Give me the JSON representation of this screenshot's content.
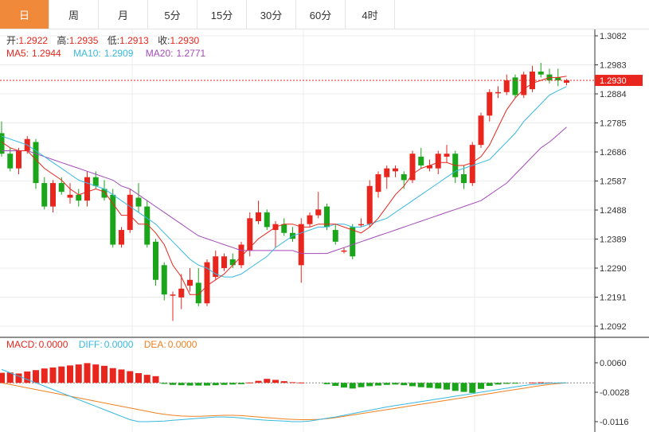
{
  "tabs": [
    "日",
    "周",
    "月",
    "5分",
    "15分",
    "30分",
    "60分",
    "4时"
  ],
  "colors": {
    "up": "#e8261d",
    "down": "#1aa51a",
    "ma5": "#e8261d",
    "ma10": "#37b8e0",
    "ma20": "#a44bb8",
    "diff": "#37b8e0",
    "dea": "#f08020",
    "active_tab": "#f08a3a"
  },
  "ohlc_header": {
    "open_label": "开:",
    "open": "1.2922",
    "high_label": "高:",
    "high": "1.2935",
    "low_label": "低:",
    "low": "1.2913",
    "close_label": "收:",
    "close": "1.2930"
  },
  "ma_header": {
    "ma5_label": "MA5:",
    "ma5": "1.2944",
    "ma10_label": "MA10:",
    "ma10": "1.2909",
    "ma20_label": "MA20:",
    "ma20": "1.2771"
  },
  "macd_header": {
    "macd_label": "MACD:",
    "macd": "0.0000",
    "diff_label": "DIFF:",
    "diff": "0.0000",
    "dea_label": "DEA:",
    "dea": "0.0000"
  },
  "chart_data": {
    "type": "candlestick",
    "price_axis": {
      "ticks": [
        "1.3082",
        "1.2983",
        "1.2884",
        "1.2785",
        "1.2686",
        "1.2587",
        "1.2488",
        "1.2389",
        "1.2290",
        "1.2191",
        "1.2092"
      ],
      "min": 1.2092,
      "max": 1.3082
    },
    "last_price": "1.2930",
    "macd_axis": {
      "ticks": [
        "0.0060",
        "-0.0028",
        "-0.0116"
      ],
      "min": -0.0116,
      "max": 0.006
    },
    "candles": [
      [
        1.275,
        1.279,
        1.267,
        1.268
      ],
      [
        1.268,
        1.27,
        1.262,
        1.263
      ],
      [
        1.263,
        1.27,
        1.261,
        1.269
      ],
      [
        1.269,
        1.274,
        1.268,
        1.273
      ],
      [
        1.272,
        1.273,
        1.256,
        1.258
      ],
      [
        1.258,
        1.26,
        1.249,
        1.25
      ],
      [
        1.25,
        1.259,
        1.248,
        1.258
      ],
      [
        1.258,
        1.26,
        1.254,
        1.255
      ],
      [
        1.253,
        1.258,
        1.251,
        1.254
      ],
      [
        1.254,
        1.256,
        1.25,
        1.252
      ],
      [
        1.252,
        1.262,
        1.25,
        1.26
      ],
      [
        1.26,
        1.262,
        1.256,
        1.257
      ],
      [
        1.256,
        1.259,
        1.252,
        1.253
      ],
      [
        1.254,
        1.256,
        1.236,
        1.237
      ],
      [
        1.237,
        1.243,
        1.236,
        1.242
      ],
      [
        1.242,
        1.256,
        1.241,
        1.254
      ],
      [
        1.253,
        1.258,
        1.248,
        1.25
      ],
      [
        1.25,
        1.252,
        1.236,
        1.237
      ],
      [
        1.238,
        1.239,
        1.223,
        1.225
      ],
      [
        1.23,
        1.231,
        1.218,
        1.22
      ],
      [
        1.22,
        1.221,
        1.211,
        1.22
      ],
      [
        1.219,
        1.227,
        1.215,
        1.222
      ],
      [
        1.223,
        1.229,
        1.221,
        1.225
      ],
      [
        1.224,
        1.229,
        1.216,
        1.217
      ],
      [
        1.217,
        1.232,
        1.216,
        1.231
      ],
      [
        1.226,
        1.235,
        1.225,
        1.233
      ],
      [
        1.229,
        1.234,
        1.228,
        1.233
      ],
      [
        1.232,
        1.234,
        1.229,
        1.23
      ],
      [
        1.23,
        1.238,
        1.229,
        1.237
      ],
      [
        1.235,
        1.248,
        1.233,
        1.246
      ],
      [
        1.245,
        1.252,
        1.244,
        1.248
      ],
      [
        1.248,
        1.249,
        1.242,
        1.243
      ],
      [
        1.242,
        1.245,
        1.236,
        1.244
      ],
      [
        1.244,
        1.246,
        1.24,
        1.241
      ],
      [
        1.241,
        1.243,
        1.238,
        1.239
      ],
      [
        1.23,
        1.246,
        1.224,
        1.244
      ],
      [
        1.244,
        1.248,
        1.243,
        1.247
      ],
      [
        1.247,
        1.255,
        1.246,
        1.249
      ],
      [
        1.25,
        1.251,
        1.242,
        1.243
      ],
      [
        1.242,
        1.244,
        1.237,
        1.238
      ],
      [
        1.235,
        1.236,
        1.234,
        1.235
      ],
      [
        1.243,
        1.244,
        1.232,
        1.233
      ],
      [
        1.244,
        1.246,
        1.243,
        1.244
      ],
      [
        1.244,
        1.259,
        1.243,
        1.257
      ],
      [
        1.255,
        1.262,
        1.253,
        1.261
      ],
      [
        1.26,
        1.264,
        1.256,
        1.263
      ],
      [
        1.262,
        1.264,
        1.26,
        1.263
      ],
      [
        1.261,
        1.262,
        1.256,
        1.259
      ],
      [
        1.259,
        1.269,
        1.258,
        1.268
      ],
      [
        1.267,
        1.27,
        1.263,
        1.264
      ],
      [
        1.263,
        1.266,
        1.262,
        1.264
      ],
      [
        1.263,
        1.269,
        1.261,
        1.268
      ],
      [
        1.267,
        1.271,
        1.265,
        1.268
      ],
      [
        1.268,
        1.269,
        1.258,
        1.26
      ],
      [
        1.261,
        1.264,
        1.256,
        1.258
      ],
      [
        1.258,
        1.272,
        1.257,
        1.271
      ],
      [
        1.271,
        1.282,
        1.27,
        1.281
      ],
      [
        1.281,
        1.29,
        1.279,
        1.289
      ],
      [
        1.289,
        1.291,
        1.287,
        1.289
      ],
      [
        1.289,
        1.295,
        1.288,
        1.293
      ],
      [
        1.294,
        1.295,
        1.287,
        1.288
      ],
      [
        1.288,
        1.296,
        1.287,
        1.295
      ],
      [
        1.29,
        1.298,
        1.289,
        1.296
      ],
      [
        1.296,
        1.299,
        1.294,
        1.295
      ],
      [
        1.295,
        1.297,
        1.292,
        1.293
      ],
      [
        1.294,
        1.297,
        1.291,
        1.293
      ],
      [
        1.2922,
        1.2935,
        1.2913,
        1.293
      ]
    ],
    "ma5": [
      1.272,
      1.27,
      1.269,
      1.269,
      1.266,
      1.263,
      1.261,
      1.259,
      1.256,
      1.254,
      1.255,
      1.256,
      1.255,
      1.251,
      1.247,
      1.247,
      1.244,
      1.244,
      1.241,
      1.237,
      1.23,
      1.226,
      1.22,
      1.22,
      1.223,
      1.225,
      1.227,
      1.23,
      1.233,
      1.236,
      1.239,
      1.241,
      1.243,
      1.244,
      1.244,
      1.243,
      1.243,
      1.244,
      1.244,
      1.244,
      1.243,
      1.242,
      1.241,
      1.243,
      1.246,
      1.25,
      1.254,
      1.257,
      1.261,
      1.263,
      1.264,
      1.265,
      1.265,
      1.264,
      1.264,
      1.265,
      1.267,
      1.271,
      1.277,
      1.283,
      1.287,
      1.29,
      1.292,
      1.293,
      1.294,
      1.294,
      1.2944
    ],
    "ma10": [
      1.274,
      1.273,
      1.272,
      1.271,
      1.269,
      1.267,
      1.265,
      1.263,
      1.261,
      1.259,
      1.258,
      1.257,
      1.256,
      1.254,
      1.252,
      1.25,
      1.248,
      1.246,
      1.244,
      1.241,
      1.238,
      1.235,
      1.232,
      1.23,
      1.229,
      1.227,
      1.226,
      1.226,
      1.227,
      1.229,
      1.231,
      1.233,
      1.236,
      1.238,
      1.24,
      1.241,
      1.242,
      1.243,
      1.243,
      1.244,
      1.244,
      1.243,
      1.243,
      1.244,
      1.245,
      1.246,
      1.248,
      1.25,
      1.252,
      1.254,
      1.256,
      1.258,
      1.26,
      1.262,
      1.263,
      1.264,
      1.265,
      1.266,
      1.269,
      1.272,
      1.275,
      1.279,
      1.282,
      1.285,
      1.288,
      1.2895,
      1.2909
    ],
    "ma20": [
      1.269,
      1.269,
      1.269,
      1.269,
      1.268,
      1.267,
      1.266,
      1.265,
      1.264,
      1.263,
      1.262,
      1.261,
      1.26,
      1.259,
      1.257,
      1.256,
      1.254,
      1.252,
      1.25,
      1.248,
      1.246,
      1.244,
      1.242,
      1.24,
      1.239,
      1.238,
      1.237,
      1.236,
      1.235,
      1.235,
      1.235,
      1.235,
      1.235,
      1.235,
      1.235,
      1.234,
      1.234,
      1.234,
      1.234,
      1.235,
      1.236,
      1.237,
      1.238,
      1.239,
      1.24,
      1.241,
      1.242,
      1.243,
      1.244,
      1.245,
      1.246,
      1.247,
      1.248,
      1.249,
      1.25,
      1.251,
      1.252,
      1.254,
      1.256,
      1.258,
      1.261,
      1.264,
      1.267,
      1.27,
      1.272,
      1.2745,
      1.2771
    ],
    "macd_bars": [
      0.003,
      0.0031,
      0.0028,
      0.0034,
      0.0038,
      0.0043,
      0.0046,
      0.0049,
      0.0052,
      0.0055,
      0.0059,
      0.0055,
      0.0051,
      0.0044,
      0.004,
      0.0035,
      0.0029,
      0.0024,
      0.002,
      -0.0003,
      -0.0006,
      -0.0007,
      -0.0008,
      -0.0008,
      -0.0008,
      -0.0007,
      -0.0006,
      -0.0005,
      -0.0004,
      0.0001,
      0.0006,
      0.0012,
      0.0009,
      0.0005,
      0.0002,
      0.0001,
      0.0,
      0.0,
      -0.0004,
      -0.0009,
      -0.0014,
      -0.0017,
      -0.0013,
      -0.001,
      -0.0008,
      -0.0006,
      -0.0005,
      -0.0007,
      -0.001,
      -0.0013,
      -0.0015,
      -0.0017,
      -0.002,
      -0.0024,
      -0.0027,
      -0.003,
      -0.0018,
      -0.0009,
      -0.0005,
      -0.0003,
      -0.0001,
      0.0,
      0.0001,
      0.0002,
      0.0001,
      0.0,
      0.0
    ],
    "diff": [
      0.004,
      0.003,
      0.002,
      0.001,
      0.0,
      -0.001,
      -0.002,
      -0.003,
      -0.004,
      -0.005,
      -0.006,
      -0.007,
      -0.008,
      -0.009,
      -0.01,
      -0.011,
      -0.0116,
      -0.0116,
      -0.0115,
      -0.0114,
      -0.0112,
      -0.011,
      -0.0108,
      -0.0106,
      -0.0104,
      -0.0102,
      -0.0102,
      -0.0103,
      -0.0105,
      -0.0108,
      -0.011,
      -0.0112,
      -0.0113,
      -0.0114,
      -0.0116,
      -0.0116,
      -0.0114,
      -0.011,
      -0.0106,
      -0.0102,
      -0.0097,
      -0.0092,
      -0.0087,
      -0.0082,
      -0.0077,
      -0.0072,
      -0.0068,
      -0.0064,
      -0.006,
      -0.0056,
      -0.0052,
      -0.0048,
      -0.0044,
      -0.004,
      -0.0036,
      -0.0032,
      -0.0028,
      -0.0024,
      -0.002,
      -0.0016,
      -0.0012,
      -0.0008,
      -0.0005,
      -0.0003,
      -0.0001,
      0.0,
      0.0
    ],
    "dea": [
      0.0,
      -0.0005,
      -0.001,
      -0.0015,
      -0.002,
      -0.0025,
      -0.003,
      -0.0035,
      -0.004,
      -0.0045,
      -0.005,
      -0.0055,
      -0.006,
      -0.0065,
      -0.007,
      -0.0075,
      -0.008,
      -0.0085,
      -0.009,
      -0.0094,
      -0.0097,
      -0.0099,
      -0.01,
      -0.01,
      -0.0099,
      -0.0098,
      -0.0097,
      -0.0097,
      -0.0098,
      -0.01,
      -0.0102,
      -0.0104,
      -0.0106,
      -0.0108,
      -0.0109,
      -0.011,
      -0.011,
      -0.0109,
      -0.0107,
      -0.0104,
      -0.01,
      -0.0096,
      -0.0092,
      -0.0088,
      -0.0084,
      -0.008,
      -0.0076,
      -0.0072,
      -0.0068,
      -0.0064,
      -0.006,
      -0.0056,
      -0.0052,
      -0.0048,
      -0.0044,
      -0.004,
      -0.0036,
      -0.0032,
      -0.0028,
      -0.0024,
      -0.002,
      -0.0016,
      -0.0012,
      -0.0008,
      -0.0005,
      -0.0002,
      0.0
    ]
  }
}
